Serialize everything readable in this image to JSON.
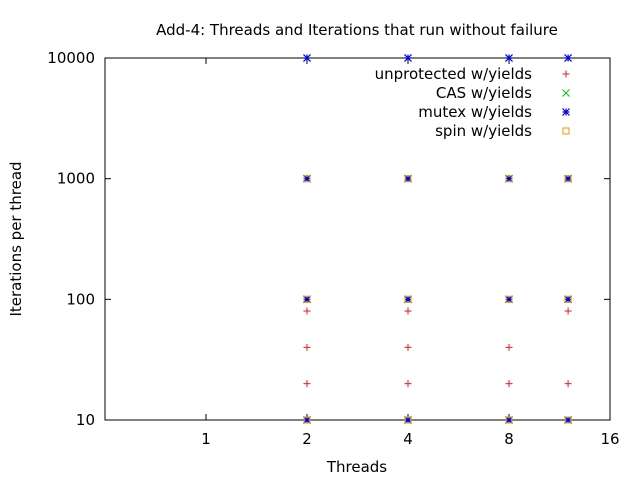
{
  "chart_data": {
    "type": "scatter",
    "title": "Add-4: Threads and Iterations that run without failure",
    "xlabel": "Threads",
    "ylabel": "Iterations per thread",
    "x_scale": "log2",
    "y_scale": "log10",
    "xlim": [
      0.5,
      16
    ],
    "ylim": [
      10,
      10000
    ],
    "x_ticks": [
      1,
      2,
      4,
      8,
      16
    ],
    "y_ticks": [
      10,
      100,
      1000,
      10000
    ],
    "legend_position": "top-right",
    "series": [
      {
        "name": "unprotected w/yields",
        "marker": "plus",
        "color": "#e41a1c",
        "points": [
          [
            2,
            10
          ],
          [
            2,
            20
          ],
          [
            2,
            40
          ],
          [
            2,
            80
          ],
          [
            2,
            100
          ],
          [
            4,
            10
          ],
          [
            4,
            20
          ],
          [
            4,
            40
          ],
          [
            4,
            80
          ],
          [
            4,
            100
          ],
          [
            8,
            10
          ],
          [
            8,
            20
          ],
          [
            8,
            40
          ],
          [
            12,
            10
          ],
          [
            12,
            20
          ],
          [
            12,
            80
          ]
        ]
      },
      {
        "name": "CAS w/yields",
        "marker": "cross",
        "color": "#00c000",
        "points": [
          [
            2,
            10
          ],
          [
            2,
            100
          ],
          [
            2,
            1000
          ],
          [
            2,
            10000
          ],
          [
            4,
            10
          ],
          [
            4,
            100
          ],
          [
            4,
            1000
          ],
          [
            4,
            10000
          ],
          [
            8,
            10
          ],
          [
            8,
            100
          ],
          [
            8,
            1000
          ],
          [
            8,
            10000
          ],
          [
            12,
            10
          ],
          [
            12,
            100
          ],
          [
            12,
            1000
          ],
          [
            12,
            10000
          ]
        ]
      },
      {
        "name": "mutex w/yields",
        "marker": "star",
        "color": "#0000e0",
        "points": [
          [
            2,
            10
          ],
          [
            2,
            100
          ],
          [
            2,
            1000
          ],
          [
            2,
            10000
          ],
          [
            4,
            10
          ],
          [
            4,
            100
          ],
          [
            4,
            1000
          ],
          [
            4,
            10000
          ],
          [
            8,
            10
          ],
          [
            8,
            100
          ],
          [
            8,
            1000
          ],
          [
            8,
            10000
          ],
          [
            12,
            10
          ],
          [
            12,
            100
          ],
          [
            12,
            1000
          ],
          [
            12,
            10000
          ]
        ]
      },
      {
        "name": "spin w/yields",
        "marker": "square",
        "color": "#e0a000",
        "points": [
          [
            2,
            10
          ],
          [
            2,
            100
          ],
          [
            2,
            1000
          ],
          [
            4,
            10
          ],
          [
            4,
            100
          ],
          [
            4,
            1000
          ],
          [
            8,
            10
          ],
          [
            8,
            100
          ],
          [
            8,
            1000
          ],
          [
            12,
            10
          ],
          [
            12,
            100
          ],
          [
            12,
            1000
          ]
        ]
      }
    ]
  }
}
